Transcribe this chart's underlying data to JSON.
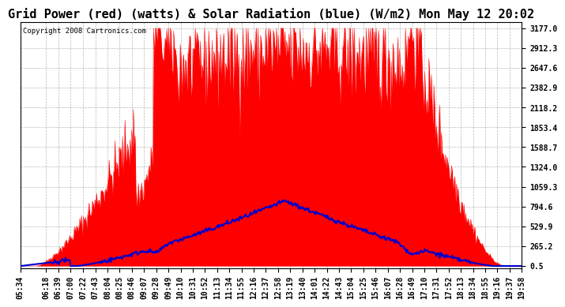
{
  "title": "Grid Power (red) (watts) & Solar Radiation (blue) (W/m2) Mon May 12 20:02",
  "copyright_text": "Copyright 2008 Cartronics.com",
  "background_color": "#ffffff",
  "plot_bg_color": "#ffffff",
  "grid_color": "#888888",
  "yticks": [
    0.5,
    265.2,
    529.9,
    794.6,
    1059.3,
    1324.0,
    1588.7,
    1853.4,
    2118.2,
    2382.9,
    2647.6,
    2912.3,
    3177.0
  ],
  "ymax": 3177.0,
  "ymin": 0.5,
  "xtick_labels": [
    "05:34",
    "06:18",
    "06:39",
    "07:00",
    "07:22",
    "07:43",
    "08:04",
    "08:25",
    "08:46",
    "09:07",
    "09:28",
    "09:49",
    "10:10",
    "10:31",
    "10:52",
    "11:13",
    "11:34",
    "11:55",
    "12:16",
    "12:37",
    "12:58",
    "13:19",
    "13:40",
    "14:01",
    "14:22",
    "14:43",
    "15:04",
    "15:25",
    "15:46",
    "16:07",
    "16:28",
    "16:49",
    "17:10",
    "17:31",
    "17:52",
    "18:13",
    "18:34",
    "18:55",
    "19:16",
    "19:37",
    "19:58"
  ],
  "blue_line_color": "#0000cc",
  "red_fill_color": "#ff0000",
  "title_fontsize": 11,
  "tick_fontsize": 7,
  "label_fontsize": 7
}
